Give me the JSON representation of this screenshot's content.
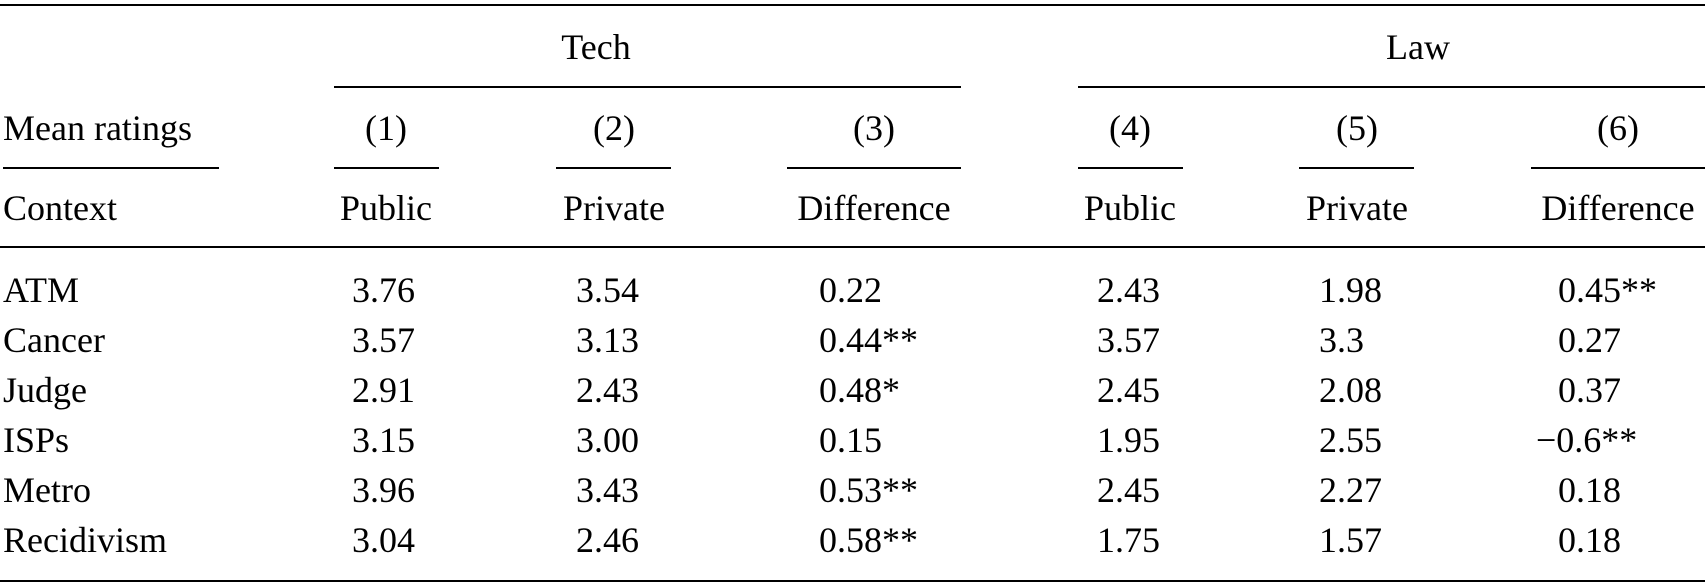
{
  "table": {
    "group_headers": [
      "Tech",
      "Law"
    ],
    "corner_label": "Mean ratings",
    "row_header_label": "Context",
    "column_numbers": [
      "(1)",
      "(2)",
      "(3)",
      "(4)",
      "(5)",
      "(6)"
    ],
    "column_labels": [
      "Public",
      "Private",
      "Difference",
      "Public",
      "Private",
      "Difference"
    ],
    "rows": [
      {
        "context": "ATM",
        "cells": [
          "3.76",
          "3.54",
          "0.22",
          "2.43",
          "1.98",
          "0.45**"
        ]
      },
      {
        "context": "Cancer",
        "cells": [
          "3.57",
          "3.13",
          "0.44**",
          "3.57",
          "3.3",
          "0.27"
        ]
      },
      {
        "context": "Judge",
        "cells": [
          "2.91",
          "2.43",
          "0.48*",
          "2.45",
          "2.08",
          "0.37"
        ]
      },
      {
        "context": "ISPs",
        "cells": [
          "3.15",
          "3.00",
          "0.15",
          "1.95",
          "2.55",
          "−0.6**"
        ]
      },
      {
        "context": "Metro",
        "cells": [
          "3.96",
          "3.43",
          "0.53**",
          "2.45",
          "2.27",
          "0.18"
        ]
      },
      {
        "context": "Recidivism",
        "cells": [
          "3.04",
          "2.46",
          "0.58**",
          "1.75",
          "1.57",
          "0.18"
        ]
      }
    ]
  }
}
